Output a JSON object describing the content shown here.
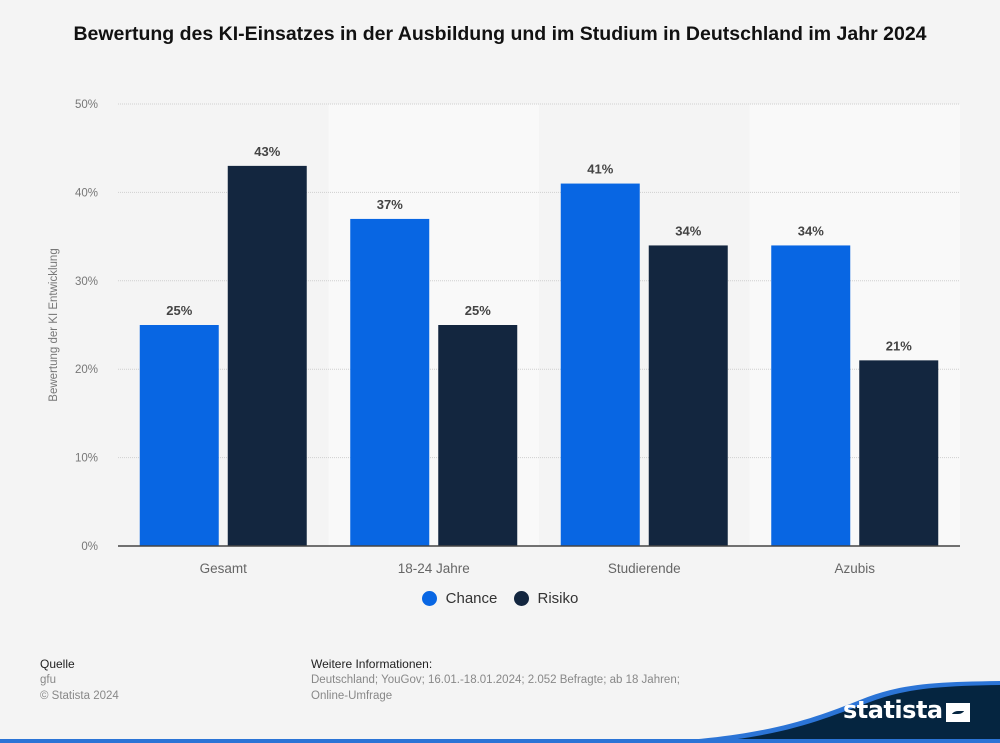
{
  "chart_data": {
    "type": "bar",
    "title": "Bewertung des KI-Einsatzes in der Ausbildung und im Studium in Deutschland im Jahr 2024",
    "xlabel": "",
    "ylabel": "Bewertung der KI Entwicklung",
    "ylim": [
      0,
      50
    ],
    "yticks": [
      0,
      10,
      20,
      30,
      40,
      50
    ],
    "ytick_labels": [
      "0%",
      "10%",
      "20%",
      "30%",
      "40%",
      "50%"
    ],
    "grid": true,
    "categories": [
      "Gesamt",
      "18-24 Jahre",
      "Studierende",
      "Azubis"
    ],
    "series": [
      {
        "name": "Chance",
        "color": "#0866e3",
        "values": [
          25,
          37,
          41,
          34
        ],
        "labels": [
          "25%",
          "37%",
          "41%",
          "34%"
        ]
      },
      {
        "name": "Risiko",
        "color": "#13263f",
        "values": [
          43,
          25,
          34,
          21
        ],
        "labels": [
          "43%",
          "25%",
          "34%",
          "21%"
        ]
      }
    ],
    "legend_position": "bottom-center"
  },
  "footer": {
    "source_heading": "Quelle",
    "source": "gfu",
    "copyright": "© Statista 2024",
    "info_heading": "Weitere Informationen:",
    "info_line1": "Deutschland; YouGov; 16.01.-18.01.2024; 2.052 Befragte; ab 18 Jahren;",
    "info_line2": "Online-Umfrage"
  },
  "logo": {
    "text": "statista"
  }
}
